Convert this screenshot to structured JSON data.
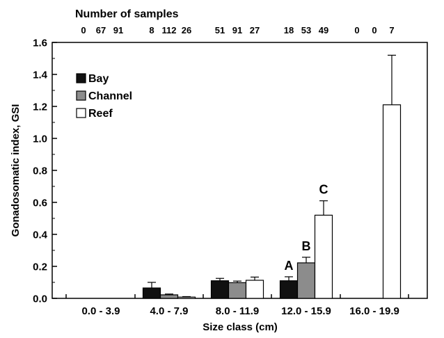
{
  "chart_data": {
    "type": "bar",
    "title": "",
    "xlabel": "Size class (cm)",
    "ylabel": "Gonadosomatic index, GSI",
    "ylim": [
      0,
      1.6
    ],
    "yticks": [
      "0.0",
      "0.2",
      "0.4",
      "0.6",
      "0.8",
      "1.0",
      "1.2",
      "1.4",
      "1.6"
    ],
    "grid": false,
    "legend_position": "top-left",
    "categories": [
      "0.0 - 3.9",
      "4.0 - 7.9",
      "8.0 - 11.9",
      "12.0 - 15.9",
      "16.0 - 19.9"
    ],
    "series": [
      {
        "name": "Bay",
        "color": "#111111",
        "values": [
          0,
          0.065,
          0.11,
          0.11,
          0
        ],
        "errors": [
          0,
          0.035,
          0.015,
          0.025,
          0
        ]
      },
      {
        "name": "Channel",
        "color": "#8c8c8c",
        "values": [
          0,
          0.022,
          0.098,
          0.222,
          0
        ],
        "errors": [
          0,
          0.005,
          0.01,
          0.035,
          0
        ]
      },
      {
        "name": "Reef",
        "color": "#ffffff",
        "values": [
          0,
          0.008,
          0.113,
          0.52,
          1.21
        ],
        "errors": [
          0,
          0.003,
          0.02,
          0.09,
          0.31
        ]
      }
    ],
    "samples_label": "Number of samples",
    "sample_counts": [
      [
        "0",
        "67",
        "91"
      ],
      [
        "8",
        "112",
        "26"
      ],
      [
        "51",
        "91",
        "27"
      ],
      [
        "18",
        "53",
        "49"
      ],
      [
        "0",
        "0",
        "7"
      ]
    ],
    "annotations": [
      {
        "text": "A",
        "category": 3,
        "series": 0
      },
      {
        "text": "B",
        "category": 3,
        "series": 1
      },
      {
        "text": "C",
        "category": 3,
        "series": 2
      }
    ]
  }
}
